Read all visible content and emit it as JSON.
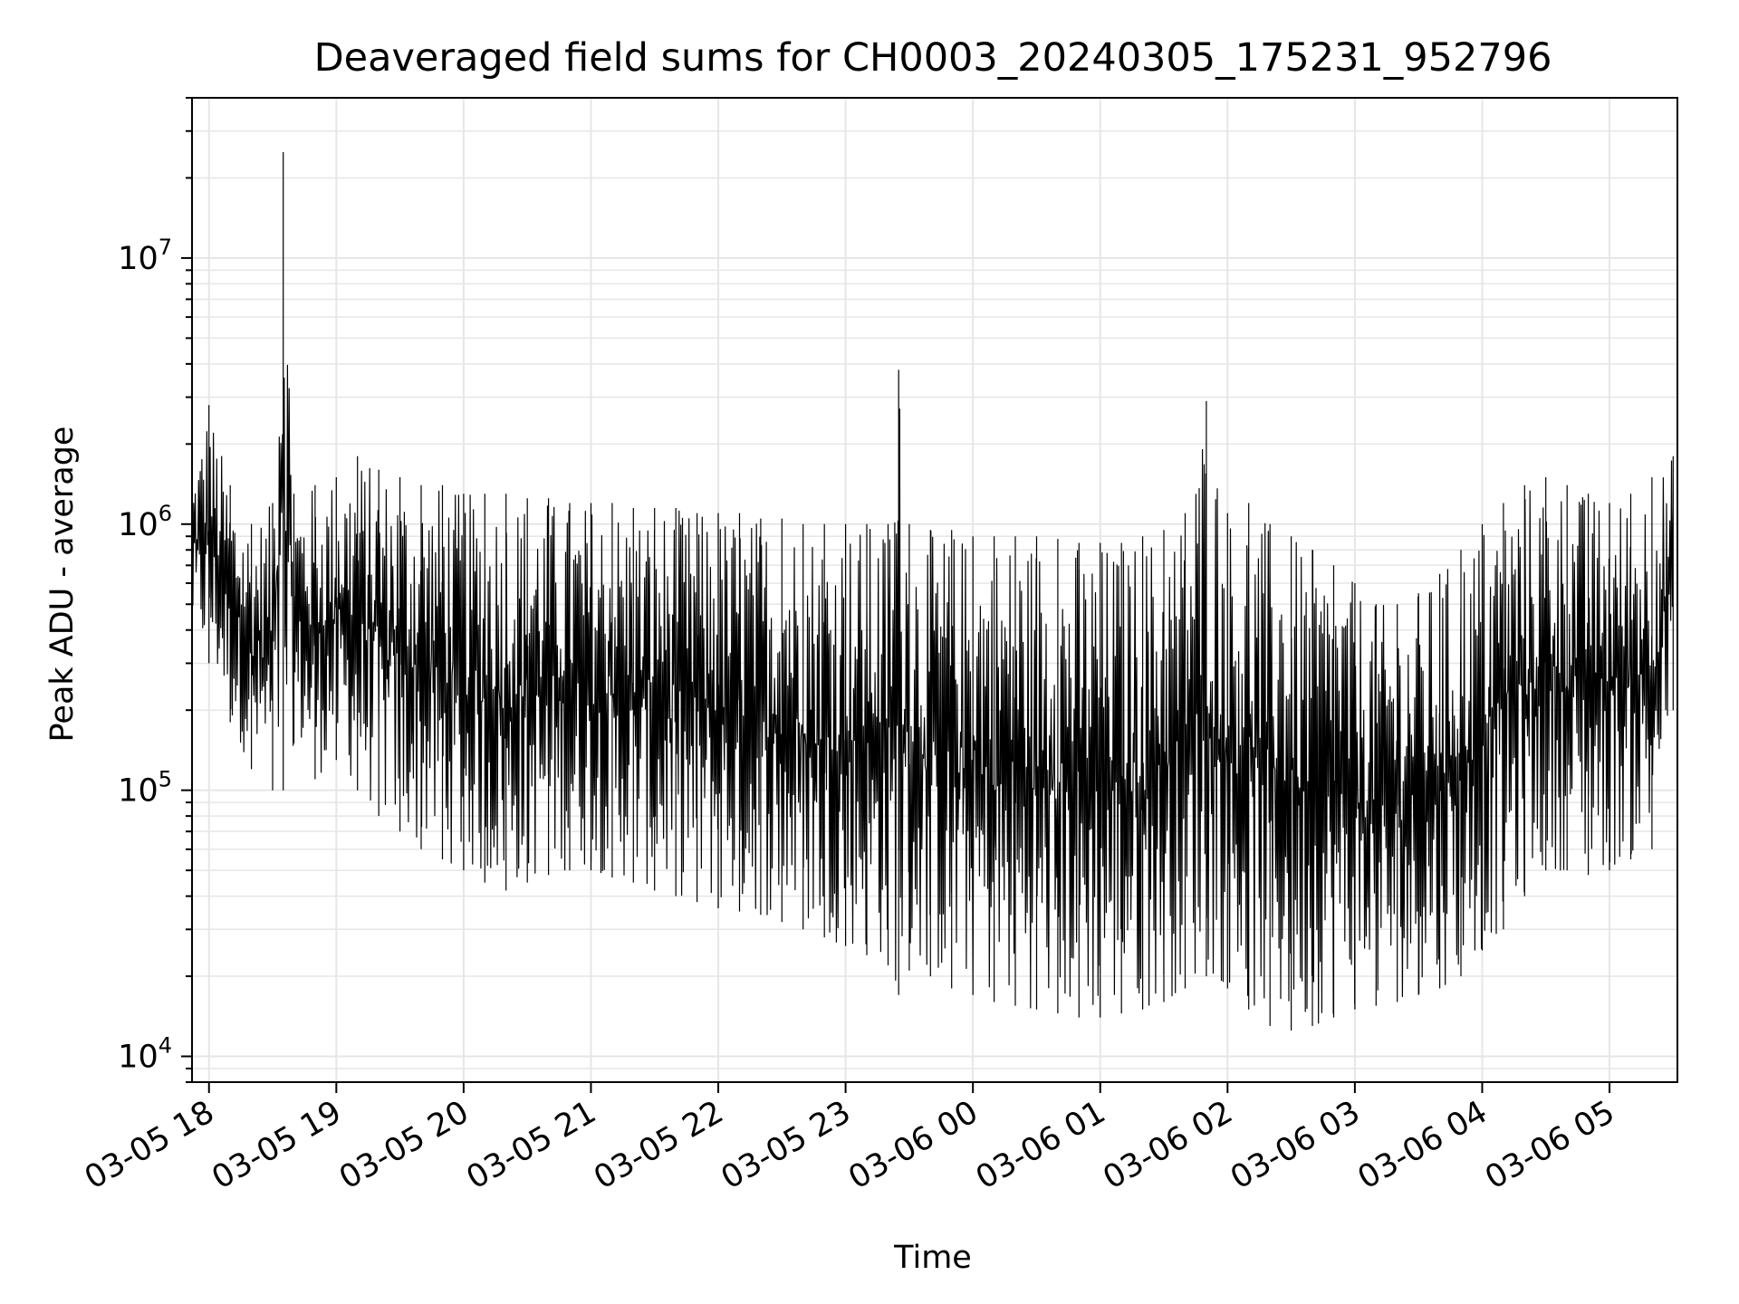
{
  "chart_data": {
    "type": "line",
    "title": "Deaveraged field sums for CH0003_20240305_175231_952796",
    "xlabel": "Time",
    "ylabel": "Peak ADU - average",
    "yscale": "log",
    "ylim": [
      8000,
      40000000
    ],
    "xlim": [
      "2024-03-05 17:52",
      "2024-03-06 05:32"
    ],
    "grid": "major and minor",
    "line_color": "#000000",
    "x_tick_labels": [
      "03-05 18",
      "03-05 19",
      "03-05 20",
      "03-05 21",
      "03-05 22",
      "03-05 23",
      "03-06 00",
      "03-06 01",
      "03-06 02",
      "03-06 03",
      "03-06 04",
      "03-06 05"
    ],
    "y_ticks": [
      {
        "value": 10000,
        "base": "10",
        "exp": "4"
      },
      {
        "value": 100000,
        "base": "10",
        "exp": "5"
      },
      {
        "value": 1000000,
        "base": "10",
        "exp": "6"
      },
      {
        "value": 10000000,
        "base": "10",
        "exp": "7"
      }
    ],
    "series": [
      {
        "x": [
          "2024-03-05 17:52",
          "2024-03-05 18:00",
          "2024-03-05 18:10",
          "2024-03-05 18:20",
          "2024-03-05 18:30",
          "2024-03-05 18:35",
          "2024-03-05 18:40",
          "2024-03-05 18:50",
          "2024-03-05 19:00",
          "2024-03-05 19:10",
          "2024-03-05 19:20",
          "2024-03-05 19:30",
          "2024-03-05 19:40",
          "2024-03-05 19:50",
          "2024-03-05 20:00",
          "2024-03-05 20:10",
          "2024-03-05 20:20",
          "2024-03-05 20:30",
          "2024-03-05 20:40",
          "2024-03-05 20:50",
          "2024-03-05 21:00",
          "2024-03-05 21:10",
          "2024-03-05 21:20",
          "2024-03-05 21:30",
          "2024-03-05 21:40",
          "2024-03-05 21:50",
          "2024-03-05 22:00",
          "2024-03-05 22:10",
          "2024-03-05 22:20",
          "2024-03-05 22:30",
          "2024-03-05 22:40",
          "2024-03-05 22:50",
          "2024-03-05 23:00",
          "2024-03-05 23:10",
          "2024-03-05 23:20",
          "2024-03-05 23:25",
          "2024-03-05 23:30",
          "2024-03-05 23:40",
          "2024-03-05 23:50",
          "2024-03-06 00:00",
          "2024-03-06 00:10",
          "2024-03-06 00:20",
          "2024-03-06 00:30",
          "2024-03-06 00:40",
          "2024-03-06 00:50",
          "2024-03-06 01:00",
          "2024-03-06 01:10",
          "2024-03-06 01:20",
          "2024-03-06 01:30",
          "2024-03-06 01:40",
          "2024-03-06 01:50",
          "2024-03-06 02:00",
          "2024-03-06 02:10",
          "2024-03-06 02:20",
          "2024-03-06 02:30",
          "2024-03-06 02:40",
          "2024-03-06 02:50",
          "2024-03-06 03:00",
          "2024-03-06 03:10",
          "2024-03-06 03:20",
          "2024-03-06 03:30",
          "2024-03-06 03:40",
          "2024-03-06 03:50",
          "2024-03-06 04:00",
          "2024-03-06 04:10",
          "2024-03-06 04:20",
          "2024-03-06 04:30",
          "2024-03-06 04:40",
          "2024-03-06 04:50",
          "2024-03-06 05:00",
          "2024-03-06 05:10",
          "2024-03-06 05:20",
          "2024-03-06 05:30"
        ],
        "lo": [
          400000,
          300000,
          180000,
          120000,
          100000,
          100000,
          150000,
          110000,
          130000,
          100000,
          80000,
          70000,
          60000,
          55000,
          50000,
          45000,
          42000,
          45000,
          48000,
          50000,
          50000,
          47000,
          45000,
          42000,
          40000,
          38000,
          36000,
          35000,
          34000,
          32000,
          30000,
          28000,
          26000,
          24000,
          22000,
          17000,
          21000,
          20000,
          18000,
          17000,
          16000,
          15500,
          15000,
          14500,
          14000,
          14000,
          14500,
          15000,
          16000,
          18000,
          20000,
          18000,
          15000,
          13000,
          12500,
          13000,
          14000,
          15000,
          15500,
          16000,
          17000,
          18000,
          20000,
          25000,
          30000,
          40000,
          50000,
          50000,
          48000,
          50000,
          55000,
          60000,
          200000
        ],
        "hi": [
          1500000,
          2800000,
          1400000,
          1000000,
          1200000,
          25000000,
          1300000,
          1400000,
          1500000,
          1800000,
          1600000,
          1500000,
          1400000,
          1400000,
          1300000,
          1300000,
          1300000,
          1250000,
          1250000,
          1200000,
          1200000,
          1200000,
          1150000,
          1150000,
          1150000,
          1100000,
          1100000,
          1100000,
          1050000,
          1050000,
          1000000,
          1000000,
          1000000,
          1000000,
          1000000,
          3800000,
          1000000,
          950000,
          950000,
          900000,
          900000,
          900000,
          900000,
          880000,
          850000,
          850000,
          850000,
          900000,
          950000,
          1100000,
          2900000,
          1100000,
          1200000,
          1000000,
          900000,
          800000,
          700000,
          600000,
          500000,
          500000,
          550000,
          650000,
          800000,
          1000000,
          1200000,
          1400000,
          1500000,
          1400000,
          1300000,
          1200000,
          1300000,
          1500000,
          1800000
        ]
      }
    ]
  }
}
